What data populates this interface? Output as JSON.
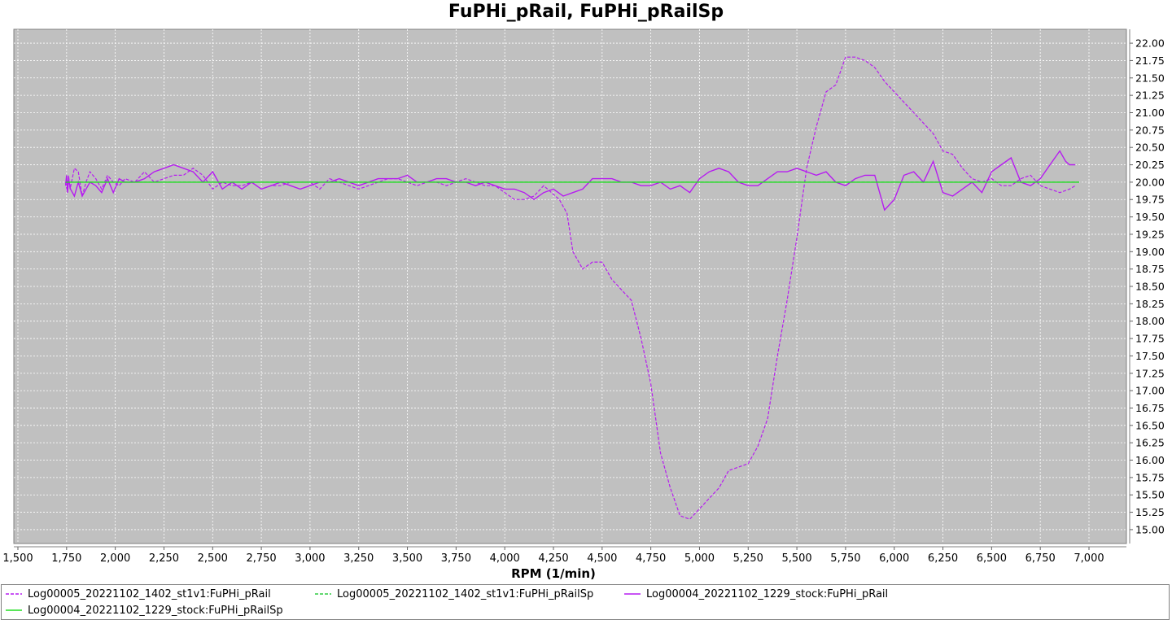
{
  "chart_data": {
    "type": "line",
    "title": "FuPHi_pRail, FuPHi_pRailSp",
    "xlabel": "RPM (1/min)",
    "ylabel": "",
    "xlim": [
      1500,
      7250
    ],
    "ylim": [
      14.8,
      22.2
    ],
    "xticks": [
      1500,
      1750,
      2000,
      2250,
      2500,
      2750,
      3000,
      3250,
      3500,
      3750,
      4000,
      4250,
      4500,
      4750,
      5000,
      5250,
      5500,
      5750,
      6000,
      6250,
      6500,
      6750,
      7000
    ],
    "xtick_labels": [
      "1,500",
      "1,750",
      "2,000",
      "2,250",
      "2,500",
      "2,750",
      "3,000",
      "3,250",
      "3,500",
      "3,750",
      "4,000",
      "4,250",
      "4,500",
      "4,750",
      "5,000",
      "5,250",
      "5,500",
      "5,750",
      "6,000",
      "6,250",
      "6,500",
      "6,750",
      "7,000"
    ],
    "yticks": [
      15,
      15.25,
      15.5,
      15.75,
      16,
      16.25,
      16.5,
      16.75,
      17,
      17.25,
      17.5,
      17.75,
      18,
      18.25,
      18.5,
      18.75,
      19,
      19.25,
      19.5,
      19.75,
      20,
      20.25,
      20.5,
      20.75,
      21,
      21.25,
      21.5,
      21.75,
      22
    ],
    "ytick_labels": [
      "15.00",
      "15.25",
      "15.50",
      "15.75",
      "16.00",
      "16.25",
      "16.50",
      "16.75",
      "17.00",
      "17.25",
      "17.50",
      "17.75",
      "18.00",
      "18.25",
      "18.50",
      "18.75",
      "19.00",
      "19.25",
      "19.50",
      "19.75",
      "20.00",
      "20.25",
      "20.50",
      "20.75",
      "21.00",
      "21.25",
      "21.50",
      "21.75",
      "22.00"
    ],
    "y_axis_side": "right",
    "grid": true,
    "legend_position": "bottom",
    "background": "#c0c0c0",
    "series": [
      {
        "name": "Log00005_20221102_1402_st1v1:FuPHi_pRail",
        "color": "#b61cf0",
        "dash": "dashed",
        "points": [
          [
            1745,
            20.0
          ],
          [
            1755,
            19.85
          ],
          [
            1760,
            20.1
          ],
          [
            1768,
            19.9
          ],
          [
            1790,
            20.2
          ],
          [
            1810,
            20.15
          ],
          [
            1830,
            19.8
          ],
          [
            1850,
            20.0
          ],
          [
            1870,
            20.15
          ],
          [
            1900,
            20.05
          ],
          [
            1930,
            19.9
          ],
          [
            1960,
            20.1
          ],
          [
            1990,
            20.0
          ],
          [
            2020,
            19.95
          ],
          [
            2050,
            20.05
          ],
          [
            2100,
            20.0
          ],
          [
            2150,
            20.15
          ],
          [
            2200,
            20.0
          ],
          [
            2250,
            20.05
          ],
          [
            2300,
            20.1
          ],
          [
            2350,
            20.1
          ],
          [
            2400,
            20.2
          ],
          [
            2450,
            20.1
          ],
          [
            2500,
            19.9
          ],
          [
            2550,
            20.0
          ],
          [
            2600,
            19.95
          ],
          [
            2650,
            19.95
          ],
          [
            2700,
            20.0
          ],
          [
            2750,
            19.9
          ],
          [
            2800,
            19.95
          ],
          [
            2850,
            19.95
          ],
          [
            2900,
            20.0
          ],
          [
            2950,
            20.0
          ],
          [
            3000,
            20.0
          ],
          [
            3050,
            19.9
          ],
          [
            3100,
            20.05
          ],
          [
            3150,
            20.0
          ],
          [
            3200,
            19.95
          ],
          [
            3250,
            19.9
          ],
          [
            3300,
            19.95
          ],
          [
            3350,
            20.0
          ],
          [
            3400,
            20.05
          ],
          [
            3450,
            20.05
          ],
          [
            3500,
            20.0
          ],
          [
            3550,
            19.95
          ],
          [
            3600,
            20.0
          ],
          [
            3650,
            20.0
          ],
          [
            3700,
            19.95
          ],
          [
            3750,
            20.0
          ],
          [
            3800,
            20.05
          ],
          [
            3850,
            20.0
          ],
          [
            3900,
            19.95
          ],
          [
            3950,
            19.95
          ],
          [
            4000,
            19.85
          ],
          [
            4050,
            19.75
          ],
          [
            4100,
            19.75
          ],
          [
            4150,
            19.8
          ],
          [
            4200,
            19.95
          ],
          [
            4240,
            19.85
          ],
          [
            4280,
            19.75
          ],
          [
            4320,
            19.55
          ],
          [
            4350,
            19.0
          ],
          [
            4400,
            18.75
          ],
          [
            4450,
            18.85
          ],
          [
            4500,
            18.85
          ],
          [
            4550,
            18.6
          ],
          [
            4600,
            18.45
          ],
          [
            4650,
            18.3
          ],
          [
            4700,
            17.75
          ],
          [
            4750,
            17.1
          ],
          [
            4800,
            16.1
          ],
          [
            4850,
            15.6
          ],
          [
            4900,
            15.2
          ],
          [
            4950,
            15.15
          ],
          [
            5000,
            15.3
          ],
          [
            5050,
            15.45
          ],
          [
            5100,
            15.6
          ],
          [
            5150,
            15.85
          ],
          [
            5200,
            15.9
          ],
          [
            5250,
            15.95
          ],
          [
            5300,
            16.2
          ],
          [
            5350,
            16.6
          ],
          [
            5400,
            17.5
          ],
          [
            5450,
            18.3
          ],
          [
            5500,
            19.2
          ],
          [
            5550,
            20.2
          ],
          [
            5600,
            20.8
          ],
          [
            5650,
            21.3
          ],
          [
            5700,
            21.4
          ],
          [
            5750,
            21.8
          ],
          [
            5800,
            21.8
          ],
          [
            5850,
            21.75
          ],
          [
            5900,
            21.65
          ],
          [
            5950,
            21.45
          ],
          [
            6000,
            21.3
          ],
          [
            6050,
            21.15
          ],
          [
            6100,
            21.0
          ],
          [
            6150,
            20.85
          ],
          [
            6200,
            20.7
          ],
          [
            6250,
            20.45
          ],
          [
            6300,
            20.4
          ],
          [
            6350,
            20.2
          ],
          [
            6400,
            20.05
          ],
          [
            6450,
            20.0
          ],
          [
            6500,
            20.05
          ],
          [
            6550,
            19.95
          ],
          [
            6600,
            19.95
          ],
          [
            6650,
            20.05
          ],
          [
            6700,
            20.1
          ],
          [
            6750,
            19.95
          ],
          [
            6800,
            19.9
          ],
          [
            6850,
            19.85
          ],
          [
            6900,
            19.9
          ],
          [
            6930,
            19.95
          ]
        ]
      },
      {
        "name": "Log00005_20221102_1402_st1v1:FuPHi_pRailSp",
        "color": "#2ecc40",
        "dash": "dashed",
        "points": [
          [
            1745,
            20.0
          ],
          [
            6950,
            20.0
          ]
        ]
      },
      {
        "name": "Log00004_20221102_1229_stock:FuPHi_pRail",
        "color": "#b61cf0",
        "dash": "solid",
        "points": [
          [
            1745,
            19.95
          ],
          [
            1750,
            20.1
          ],
          [
            1755,
            19.85
          ],
          [
            1760,
            20.05
          ],
          [
            1770,
            19.9
          ],
          [
            1790,
            19.8
          ],
          [
            1810,
            20.0
          ],
          [
            1830,
            19.8
          ],
          [
            1850,
            19.9
          ],
          [
            1870,
            20.0
          ],
          [
            1900,
            19.95
          ],
          [
            1930,
            19.85
          ],
          [
            1960,
            20.05
          ],
          [
            1990,
            19.85
          ],
          [
            2020,
            20.05
          ],
          [
            2050,
            20.0
          ],
          [
            2100,
            20.0
          ],
          [
            2150,
            20.05
          ],
          [
            2200,
            20.15
          ],
          [
            2250,
            20.2
          ],
          [
            2300,
            20.25
          ],
          [
            2350,
            20.2
          ],
          [
            2400,
            20.15
          ],
          [
            2450,
            20.0
          ],
          [
            2500,
            20.15
          ],
          [
            2550,
            19.9
          ],
          [
            2600,
            20.0
          ],
          [
            2650,
            19.9
          ],
          [
            2700,
            20.0
          ],
          [
            2750,
            19.9
          ],
          [
            2800,
            19.95
          ],
          [
            2850,
            20.0
          ],
          [
            2900,
            19.95
          ],
          [
            2950,
            19.9
          ],
          [
            3000,
            19.95
          ],
          [
            3050,
            20.0
          ],
          [
            3100,
            20.0
          ],
          [
            3150,
            20.05
          ],
          [
            3200,
            20.0
          ],
          [
            3250,
            19.95
          ],
          [
            3300,
            20.0
          ],
          [
            3350,
            20.05
          ],
          [
            3400,
            20.05
          ],
          [
            3450,
            20.05
          ],
          [
            3500,
            20.1
          ],
          [
            3550,
            20.0
          ],
          [
            3600,
            20.0
          ],
          [
            3650,
            20.05
          ],
          [
            3700,
            20.05
          ],
          [
            3750,
            20.0
          ],
          [
            3800,
            20.0
          ],
          [
            3850,
            19.95
          ],
          [
            3900,
            20.0
          ],
          [
            3950,
            19.95
          ],
          [
            4000,
            19.9
          ],
          [
            4050,
            19.9
          ],
          [
            4100,
            19.85
          ],
          [
            4150,
            19.75
          ],
          [
            4200,
            19.85
          ],
          [
            4250,
            19.9
          ],
          [
            4300,
            19.8
          ],
          [
            4350,
            19.85
          ],
          [
            4400,
            19.9
          ],
          [
            4450,
            20.05
          ],
          [
            4500,
            20.05
          ],
          [
            4550,
            20.05
          ],
          [
            4600,
            20.0
          ],
          [
            4650,
            20.0
          ],
          [
            4700,
            19.95
          ],
          [
            4750,
            19.95
          ],
          [
            4800,
            20.0
          ],
          [
            4850,
            19.9
          ],
          [
            4900,
            19.95
          ],
          [
            4950,
            19.85
          ],
          [
            5000,
            20.05
          ],
          [
            5050,
            20.15
          ],
          [
            5100,
            20.2
          ],
          [
            5150,
            20.15
          ],
          [
            5200,
            20.0
          ],
          [
            5250,
            19.95
          ],
          [
            5300,
            19.95
          ],
          [
            5350,
            20.05
          ],
          [
            5400,
            20.15
          ],
          [
            5450,
            20.15
          ],
          [
            5500,
            20.2
          ],
          [
            5550,
            20.15
          ],
          [
            5600,
            20.1
          ],
          [
            5650,
            20.15
          ],
          [
            5700,
            20.0
          ],
          [
            5750,
            19.95
          ],
          [
            5800,
            20.05
          ],
          [
            5850,
            20.1
          ],
          [
            5900,
            20.1
          ],
          [
            5950,
            19.6
          ],
          [
            6000,
            19.75
          ],
          [
            6050,
            20.1
          ],
          [
            6100,
            20.15
          ],
          [
            6150,
            20.0
          ],
          [
            6200,
            20.3
          ],
          [
            6250,
            19.85
          ],
          [
            6300,
            19.8
          ],
          [
            6350,
            19.9
          ],
          [
            6400,
            20.0
          ],
          [
            6450,
            19.85
          ],
          [
            6500,
            20.15
          ],
          [
            6550,
            20.25
          ],
          [
            6600,
            20.35
          ],
          [
            6650,
            20.0
          ],
          [
            6700,
            19.95
          ],
          [
            6750,
            20.05
          ],
          [
            6800,
            20.25
          ],
          [
            6850,
            20.45
          ],
          [
            6880,
            20.3
          ],
          [
            6900,
            20.25
          ],
          [
            6930,
            20.25
          ]
        ]
      },
      {
        "name": "Log00004_20221102_1229_stock:FuPHi_pRailSp",
        "color": "#22dd22",
        "dash": "solid",
        "points": [
          [
            1745,
            20.0
          ],
          [
            6950,
            20.0
          ]
        ]
      }
    ]
  }
}
